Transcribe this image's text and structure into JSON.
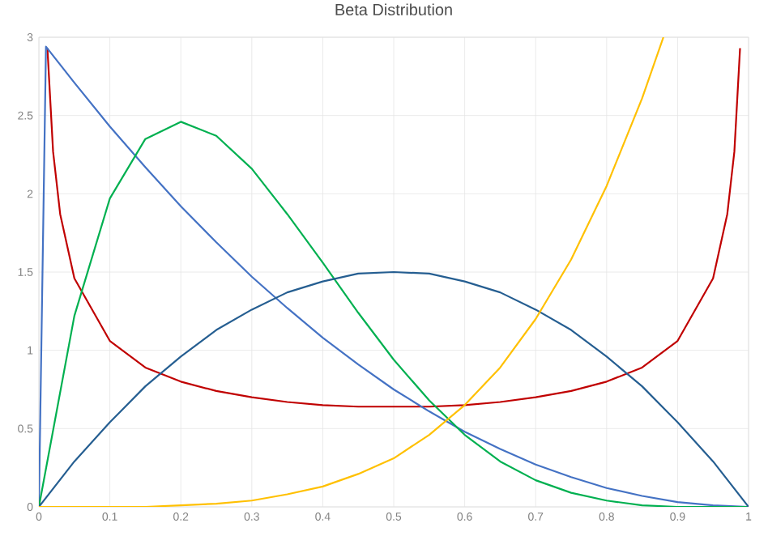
{
  "chart_data": {
    "type": "line",
    "title": "Beta Distribution",
    "xlim": [
      0,
      1
    ],
    "ylim": [
      0,
      3
    ],
    "xticks": [
      0,
      0.1,
      0.2,
      0.3,
      0.4,
      0.5,
      0.6,
      0.7,
      0.8,
      0.9,
      1
    ],
    "yticks": [
      0,
      0.5,
      1,
      1.5,
      2,
      2.5,
      3
    ],
    "grid": true,
    "marker": "none",
    "line_style": "solid",
    "series": [
      {
        "color": "#c00000",
        "x": [
          0.012,
          0.02,
          0.03,
          0.05,
          0.1,
          0.15,
          0.2,
          0.25,
          0.3,
          0.35,
          0.4,
          0.45,
          0.5,
          0.55,
          0.6,
          0.65,
          0.7,
          0.75,
          0.8,
          0.85,
          0.9,
          0.95,
          0.97,
          0.98,
          0.988
        ],
        "values": [
          2.93,
          2.27,
          1.87,
          1.46,
          1.06,
          0.89,
          0.8,
          0.74,
          0.7,
          0.67,
          0.65,
          0.64,
          0.64,
          0.64,
          0.65,
          0.67,
          0.7,
          0.74,
          0.8,
          0.89,
          1.06,
          1.46,
          1.87,
          2.27,
          2.93
        ]
      },
      {
        "color": "#4472c4",
        "x": [
          0,
          0.01,
          0.05,
          0.1,
          0.15,
          0.2,
          0.25,
          0.3,
          0.35,
          0.4,
          0.45,
          0.5,
          0.55,
          0.6,
          0.65,
          0.7,
          0.75,
          0.8,
          0.85,
          0.9,
          0.95,
          1
        ],
        "values": [
          0,
          2.94,
          2.71,
          2.43,
          2.17,
          1.92,
          1.69,
          1.47,
          1.27,
          1.08,
          0.91,
          0.75,
          0.61,
          0.48,
          0.37,
          0.27,
          0.19,
          0.12,
          0.07,
          0.03,
          0.01,
          0
        ]
      },
      {
        "color": "#00b050",
        "x": [
          0,
          0.05,
          0.1,
          0.15,
          0.2,
          0.25,
          0.3,
          0.35,
          0.4,
          0.45,
          0.5,
          0.55,
          0.6,
          0.65,
          0.7,
          0.75,
          0.8,
          0.85,
          0.9,
          0.95,
          1
        ],
        "values": [
          0,
          1.22,
          1.97,
          2.35,
          2.46,
          2.37,
          2.16,
          1.87,
          1.56,
          1.24,
          0.94,
          0.68,
          0.46,
          0.29,
          0.17,
          0.09,
          0.04,
          0.01,
          0,
          0,
          0
        ]
      },
      {
        "color": "#255e91",
        "x": [
          0,
          0.05,
          0.1,
          0.15,
          0.2,
          0.25,
          0.3,
          0.35,
          0.4,
          0.45,
          0.5,
          0.55,
          0.6,
          0.65,
          0.7,
          0.75,
          0.8,
          0.85,
          0.9,
          0.95,
          1
        ],
        "values": [
          0,
          0.29,
          0.54,
          0.77,
          0.96,
          1.13,
          1.26,
          1.37,
          1.44,
          1.49,
          1.5,
          1.49,
          1.44,
          1.37,
          1.26,
          1.13,
          0.96,
          0.77,
          0.54,
          0.29,
          0
        ]
      },
      {
        "color": "#ffc000",
        "x": [
          0,
          0.05,
          0.1,
          0.15,
          0.2,
          0.25,
          0.3,
          0.35,
          0.4,
          0.45,
          0.5,
          0.55,
          0.6,
          0.65,
          0.7,
          0.75,
          0.8,
          0.85,
          0.88
        ],
        "values": [
          0,
          0,
          0,
          0,
          0.01,
          0.02,
          0.04,
          0.08,
          0.13,
          0.21,
          0.31,
          0.46,
          0.65,
          0.89,
          1.2,
          1.58,
          2.05,
          2.61,
          3.0
        ]
      }
    ]
  }
}
